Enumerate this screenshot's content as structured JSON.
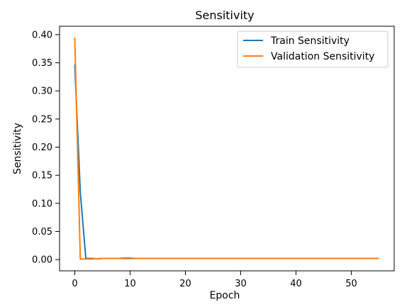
{
  "chart_data": {
    "type": "line",
    "title": "Sensitivity",
    "xlabel": "Epoch",
    "ylabel": "Sensitivity",
    "xlim": [
      -2.75,
      57.75
    ],
    "ylim": [
      -0.02,
      0.415
    ],
    "x_ticks": [
      0,
      10,
      20,
      30,
      40,
      50
    ],
    "y_ticks": [
      0.0,
      0.05,
      0.1,
      0.15,
      0.2,
      0.25,
      0.3,
      0.35,
      0.4
    ],
    "x_tick_labels": [
      "0",
      "10",
      "20",
      "30",
      "40",
      "50"
    ],
    "y_tick_labels": [
      "0.00",
      "0.05",
      "0.10",
      "0.15",
      "0.20",
      "0.25",
      "0.30",
      "0.35",
      "0.40"
    ],
    "grid": false,
    "legend_position": "top-right",
    "x": [
      0,
      1,
      2,
      3,
      4,
      5,
      6,
      7,
      8,
      9,
      10,
      11,
      12,
      13,
      14,
      15,
      16,
      17,
      18,
      19,
      20,
      21,
      22,
      23,
      24,
      25,
      26,
      27,
      28,
      29,
      30,
      31,
      32,
      33,
      34,
      35,
      36,
      37,
      38,
      39,
      40,
      41,
      42,
      43,
      44,
      45,
      46,
      47,
      48,
      49,
      50,
      51,
      52,
      53,
      54,
      55
    ],
    "series": [
      {
        "name": "Train Sensitivity",
        "color": "#1f77b4",
        "values": [
          0.347,
          0.12,
          0.002,
          0.002,
          0.0015,
          0.002,
          0.002,
          0.002,
          0.002,
          0.002,
          0.002,
          0.002,
          0.002,
          0.002,
          0.002,
          0.002,
          0.002,
          0.002,
          0.002,
          0.002,
          0.002,
          0.002,
          0.002,
          0.002,
          0.002,
          0.002,
          0.002,
          0.002,
          0.002,
          0.002,
          0.002,
          0.002,
          0.002,
          0.002,
          0.002,
          0.002,
          0.002,
          0.002,
          0.002,
          0.002,
          0.002,
          0.002,
          0.002,
          0.002,
          0.002,
          0.002,
          0.002,
          0.002,
          0.002,
          0.002,
          0.002,
          0.002,
          0.002,
          0.002,
          0.002,
          0.002
        ]
      },
      {
        "name": "Validation Sensitivity",
        "color": "#ff7f0e",
        "values": [
          0.395,
          0.001,
          0.001,
          0.001,
          0.0015,
          0.002,
          0.002,
          0.002,
          0.002,
          0.003,
          0.003,
          0.002,
          0.002,
          0.002,
          0.002,
          0.002,
          0.002,
          0.002,
          0.002,
          0.002,
          0.002,
          0.002,
          0.002,
          0.002,
          0.002,
          0.002,
          0.002,
          0.002,
          0.002,
          0.002,
          0.002,
          0.002,
          0.002,
          0.002,
          0.002,
          0.002,
          0.002,
          0.002,
          0.002,
          0.002,
          0.002,
          0.002,
          0.002,
          0.002,
          0.002,
          0.002,
          0.002,
          0.002,
          0.002,
          0.002,
          0.002,
          0.002,
          0.002,
          0.002,
          0.002,
          0.002
        ]
      }
    ]
  }
}
